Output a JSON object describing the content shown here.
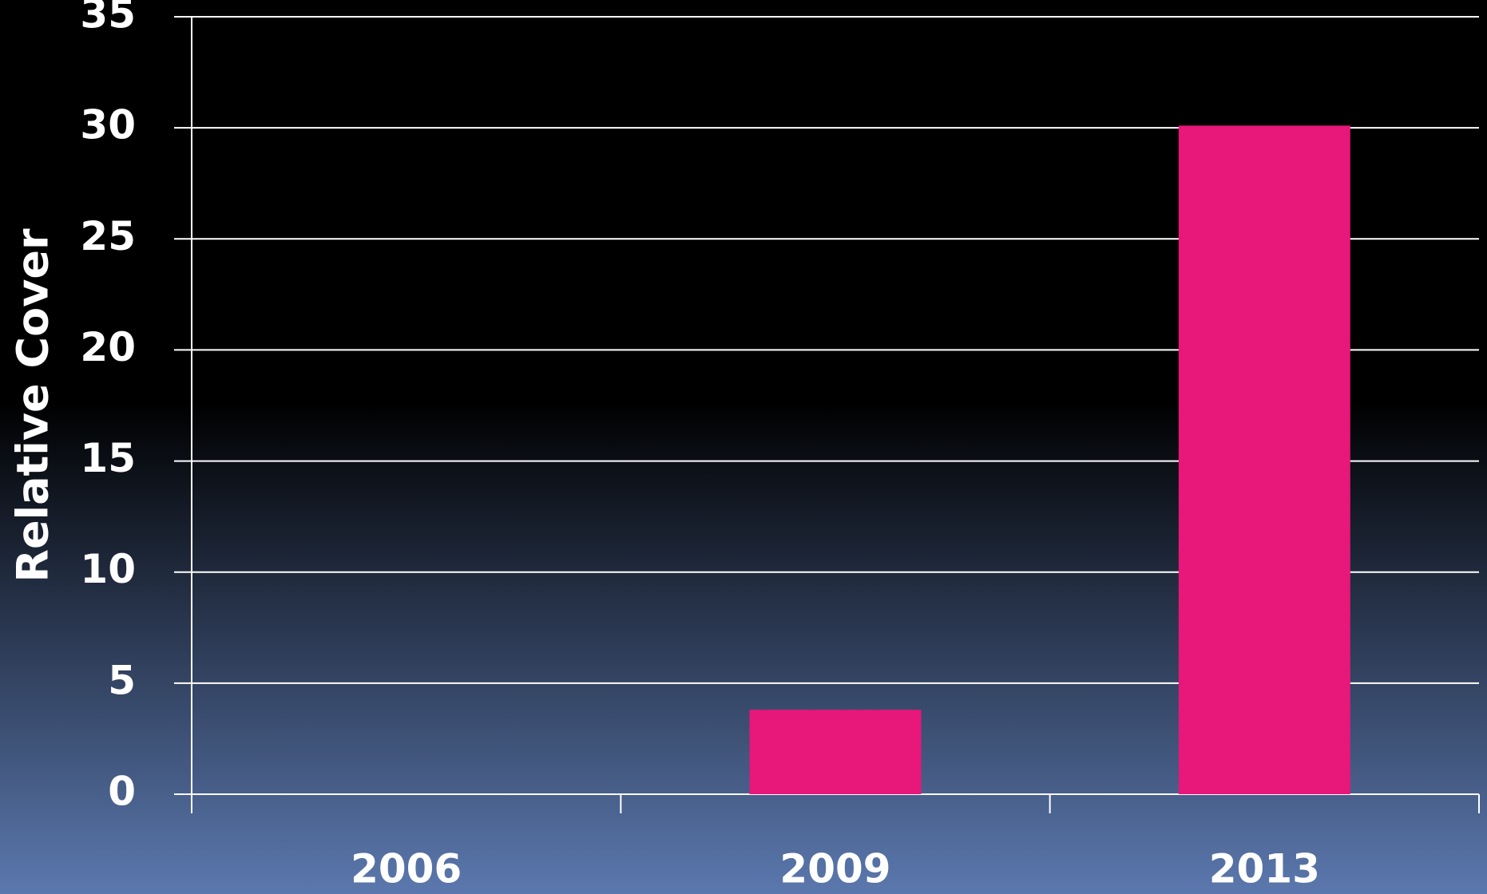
{
  "chart_data": {
    "type": "bar",
    "y_label": "Relative Cover",
    "categories": [
      "2006",
      "2009",
      "2013"
    ],
    "values": [
      0,
      3.8,
      30.1
    ],
    "color": "#e8177a",
    "ylim": [
      0,
      35
    ],
    "yticks": [
      0,
      5,
      10,
      15,
      20,
      25,
      30,
      35
    ],
    "grid": true
  }
}
